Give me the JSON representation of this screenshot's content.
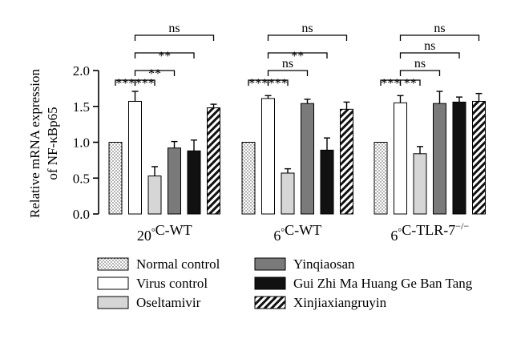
{
  "chart_data": {
    "type": "bar",
    "ylabel_line1": "Relative mRNA expression",
    "ylabel_line2": "of NF-κBp65",
    "ylim": [
      0,
      2.0
    ],
    "yticks": [
      "0.0",
      "0.5",
      "1.0",
      "1.5",
      "2.0"
    ],
    "ytick_values": [
      0,
      0.5,
      1.0,
      1.5,
      2.0
    ],
    "groups": [
      {
        "label": "20°C-WT",
        "label_html": "20<tspan baseline-shift=\"super\" font-size=\"10\">°</tspan>C-WT"
      },
      {
        "label": "6°C-WT"
      },
      {
        "label": "6°C-TLR-7−/−"
      }
    ],
    "series": [
      {
        "name": "Normal control",
        "pattern": "dots",
        "values": [
          1.0,
          1.0,
          1.0
        ],
        "errors": [
          0,
          0,
          0
        ]
      },
      {
        "name": "Virus control",
        "pattern": "white",
        "values": [
          1.57,
          1.61,
          1.55
        ],
        "errors": [
          0.14,
          0.04,
          0.1
        ]
      },
      {
        "name": "Oseltamivir",
        "pattern": "lightgray",
        "values": [
          0.53,
          0.57,
          0.84
        ],
        "errors": [
          0.13,
          0.06,
          0.1
        ]
      },
      {
        "name": "Yinqiaosan",
        "pattern": "gray",
        "values": [
          0.92,
          1.54,
          1.54
        ],
        "errors": [
          0.09,
          0.06,
          0.17
        ]
      },
      {
        "name": "Gui Zhi Ma Huang Ge Ban Tang",
        "pattern": "black",
        "values": [
          0.88,
          0.89,
          1.56
        ],
        "errors": [
          0.15,
          0.17,
          0.07
        ]
      },
      {
        "name": "Xinjiaxiangruyin",
        "pattern": "hatch",
        "values": [
          1.48,
          1.46,
          1.57
        ],
        "errors": [
          0.05,
          0.1,
          0.11
        ]
      }
    ],
    "significance": [
      {
        "group": 0,
        "from": 0,
        "to": 1,
        "label": "***"
      },
      {
        "group": 0,
        "from": 1,
        "to": 2,
        "label": "***"
      },
      {
        "group": 0,
        "from": 1,
        "to": 3,
        "label": "**"
      },
      {
        "group": 0,
        "from": 1,
        "to": 4,
        "label": "**"
      },
      {
        "group": 0,
        "from": 1,
        "to": 5,
        "label": "ns"
      },
      {
        "group": 1,
        "from": 0,
        "to": 1,
        "label": "***"
      },
      {
        "group": 1,
        "from": 1,
        "to": 2,
        "label": "***"
      },
      {
        "group": 1,
        "from": 1,
        "to": 3,
        "label": "ns"
      },
      {
        "group": 1,
        "from": 1,
        "to": 4,
        "label": "**"
      },
      {
        "group": 1,
        "from": 1,
        "to": 5,
        "label": "ns"
      },
      {
        "group": 2,
        "from": 0,
        "to": 1,
        "label": "***"
      },
      {
        "group": 2,
        "from": 1,
        "to": 2,
        "label": "**"
      },
      {
        "group": 2,
        "from": 1,
        "to": 3,
        "label": "ns"
      },
      {
        "group": 2,
        "from": 1,
        "to": 4,
        "label": "ns"
      },
      {
        "group": 2,
        "from": 1,
        "to": 5,
        "label": "ns"
      }
    ],
    "legend_position": "bottom",
    "grid": false
  }
}
